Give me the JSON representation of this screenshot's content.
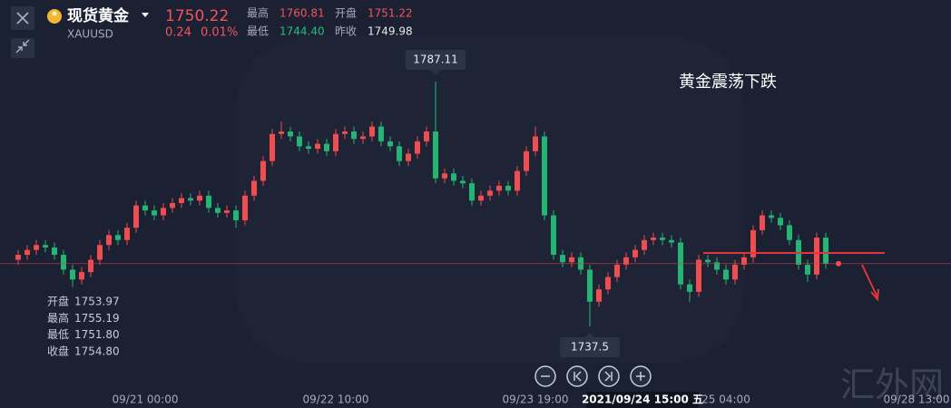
{
  "header": {
    "name": "现货黄金",
    "symbol": "XAUUSD",
    "change": "0.24",
    "change_pct": "0.01%",
    "stats": [
      {
        "label": "最高",
        "value": "1760.81"
      },
      {
        "label": "开盘",
        "value": "1751.22"
      },
      {
        "label": "最低",
        "value": "1744.40"
      },
      {
        "label": "昨收",
        "value": "1749.98"
      }
    ]
  },
  "hover": [
    {
      "label": "开盘",
      "value": "1753.97"
    },
    {
      "label": "最高",
      "value": "1755.19"
    },
    {
      "label": "最低",
      "value": "1751.80"
    },
    {
      "label": "收盘",
      "value": "1754.80"
    }
  ],
  "watermark": "汇外网",
  "chart_data": {
    "type": "candlestick",
    "annotation": "黄金震荡下跌",
    "up_color": "#ef4d4f",
    "down_color": "#22b573",
    "ylim": [
      1730,
      1792
    ],
    "crosshair": 70,
    "categories": [
      null,
      null,
      null,
      null,
      null,
      null,
      null,
      null,
      null,
      null,
      null,
      null,
      null,
      null,
      "09/21 00:00",
      null,
      null,
      null,
      null,
      null,
      null,
      null,
      null,
      null,
      null,
      null,
      null,
      null,
      null,
      null,
      null,
      null,
      null,
      null,
      null,
      "09/22 10:00",
      null,
      null,
      null,
      null,
      null,
      null,
      null,
      null,
      null,
      null,
      null,
      null,
      null,
      null,
      null,
      null,
      null,
      null,
      null,
      null,
      null,
      "09/23 19:00",
      null,
      null,
      null,
      null,
      null,
      null,
      null,
      null,
      null,
      null,
      null,
      null,
      "2021/09/24 15:00 五",
      null,
      null,
      null,
      null,
      null,
      null,
      null,
      "25 04:00",
      null,
      null,
      null,
      null,
      null,
      null,
      null,
      null,
      null,
      null,
      null,
      null,
      null,
      null,
      null,
      null,
      null,
      null,
      null,
      null,
      "09/28 13:00"
    ],
    "open": [
      1751,
      1752,
      1753,
      1754,
      1753.5,
      1752,
      1749,
      1747,
      1748.5,
      1751,
      1754,
      1756,
      1755,
      1757.5,
      1762,
      1761,
      1760,
      1761.5,
      1762.5,
      1763.5,
      1763,
      1764,
      1761.5,
      1760.5,
      1761,
      1759,
      1764,
      1767,
      1771,
      1776.5,
      1777,
      1776,
      1774,
      1773.5,
      1774.5,
      1773,
      1776.5,
      1777,
      1775.5,
      1776,
      1778,
      1775,
      1774,
      1771,
      1772.5,
      1775,
      1777,
      1767.5,
      1768.5,
      1767,
      1766.5,
      1763,
      1764,
      1765,
      1766,
      1765,
      1769,
      1773,
      1776,
      1760,
      1752,
      1750.5,
      1751.5,
      1749,
      1742.5,
      1745,
      1747.5,
      1750,
      1751.5,
      1753,
      1755,
      1755.5,
      1755,
      1754.5,
      1746,
      1744.5,
      1751,
      1750.5,
      1749,
      1747,
      1750,
      1751.5,
      1757,
      1760,
      1759.5,
      1758,
      1755,
      1750,
      1748,
      1755.5,
      null,
      null,
      null,
      null,
      null,
      null,
      null,
      null,
      null,
      null
    ],
    "high": [
      1753,
      1754,
      1755,
      1755,
      1754.5,
      1753,
      1750,
      1749.5,
      1752,
      1755,
      1757,
      1757,
      1758.5,
      1763,
      1763,
      1762,
      1762.5,
      1763.5,
      1764.5,
      1764.5,
      1765,
      1765,
      1762.5,
      1762,
      1762,
      1765,
      1768,
      1772,
      1777.5,
      1779,
      1778,
      1777,
      1775,
      1775.5,
      1775.5,
      1777.5,
      1778,
      1778,
      1777,
      1779,
      1779,
      1776,
      1775,
      1773.5,
      1776,
      1778,
      1787.11,
      1769.5,
      1769.5,
      1768,
      1767.5,
      1765,
      1766,
      1767,
      1767,
      1770,
      1774,
      1778,
      1777,
      1761,
      1753,
      1752.5,
      1752.5,
      1750,
      1746,
      1748.5,
      1751,
      1752.5,
      1754,
      1756,
      1756.5,
      1756.5,
      1756,
      1755.5,
      1747,
      1752,
      1752,
      1751.5,
      1750,
      1751,
      1752.5,
      1758,
      1761,
      1761,
      1760.5,
      1759,
      1756,
      1751,
      1756.5,
      1756.5,
      null,
      null,
      null,
      null,
      null,
      null,
      null,
      null,
      null,
      null
    ],
    "low": [
      1750,
      1751,
      1752,
      1752.5,
      1751,
      1748,
      1745.5,
      1746,
      1747.5,
      1750,
      1753,
      1754,
      1754,
      1756.5,
      1760,
      1759,
      1759,
      1760.5,
      1761.5,
      1762,
      1762,
      1760.5,
      1759.5,
      1759.5,
      1757.5,
      1758,
      1763,
      1766,
      1770,
      1775.5,
      1775,
      1773,
      1772.5,
      1772.5,
      1772,
      1772,
      1775.5,
      1774.5,
      1774.5,
      1775,
      1774,
      1773,
      1770,
      1770,
      1771.5,
      1774,
      1766.5,
      1766.5,
      1766,
      1765.5,
      1762,
      1762,
      1763,
      1764,
      1764,
      1764,
      1768,
      1772,
      1759,
      1751,
      1749.5,
      1749.5,
      1748,
      1737.5,
      1741.5,
      1744,
      1746.5,
      1749,
      1750.5,
      1752,
      1754,
      1754,
      1753.5,
      1745,
      1742.5,
      1743.5,
      1749.5,
      1748,
      1746,
      1746,
      1749,
      1750.5,
      1756,
      1758.5,
      1757,
      1754,
      1749,
      1746.5,
      1747,
      1749.2,
      null,
      null,
      null,
      null,
      null,
      null,
      null,
      null,
      null,
      null
    ],
    "close": [
      1752,
      1753,
      1754,
      1753.5,
      1752,
      1749,
      1747,
      1748.5,
      1751,
      1754,
      1756,
      1755,
      1757.5,
      1762,
      1761,
      1760,
      1761.5,
      1762.5,
      1763.5,
      1763,
      1764,
      1761.5,
      1760.5,
      1761,
      1759,
      1764,
      1767,
      1771,
      1776.5,
      1777,
      1776,
      1774,
      1773.5,
      1774.5,
      1773,
      1776.5,
      1777,
      1775.5,
      1776,
      1778,
      1775,
      1774,
      1771,
      1772.5,
      1775,
      1777,
      1767.5,
      1768.5,
      1767,
      1766.5,
      1763,
      1764,
      1765,
      1766,
      1765,
      1769,
      1773,
      1776,
      1760,
      1752,
      1750.5,
      1751.5,
      1749,
      1742.5,
      1745,
      1747.5,
      1750,
      1751.5,
      1753,
      1755,
      1755.5,
      1755,
      1754.5,
      1746,
      1744.5,
      1751,
      1750.5,
      1749,
      1747,
      1750,
      1751.5,
      1757,
      1760,
      1759.5,
      1758,
      1755,
      1750,
      1748,
      1755.5,
      1750.22,
      null,
      null,
      null,
      null,
      null,
      null,
      null,
      null,
      null,
      null
    ]
  }
}
